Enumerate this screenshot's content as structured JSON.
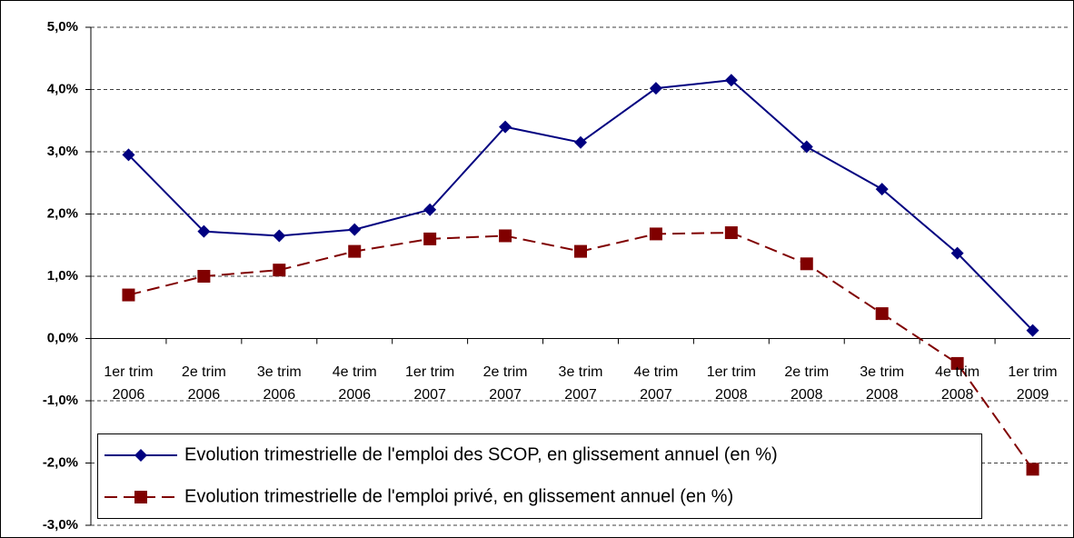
{
  "chart_data": {
    "type": "line",
    "categories": [
      "1er trim 2006",
      "2e trim 2006",
      "3e trim 2006",
      "4e trim 2006",
      "1er trim 2007",
      "2e trim 2007",
      "3e trim 2007",
      "4e trim 2007",
      "1er trim 2008",
      "2e trim 2008",
      "3e trim 2008",
      "4e trim 2008",
      "1er trim 2009"
    ],
    "series": [
      {
        "name": "Evolution trimestrielle de l'emploi des SCOP, en glissement annuel (en %)",
        "color": "#000080",
        "marker": "diamond",
        "dash": false,
        "values": [
          2.95,
          1.72,
          1.65,
          1.75,
          2.07,
          3.4,
          3.15,
          4.02,
          4.15,
          3.08,
          2.4,
          1.37,
          0.13
        ]
      },
      {
        "name": "Evolution trimestrielle de l'emploi privé, en glissement annuel (en %)",
        "color": "#800000",
        "marker": "square",
        "dash": true,
        "values": [
          0.7,
          1.0,
          1.1,
          1.4,
          1.6,
          1.65,
          1.4,
          1.68,
          1.7,
          1.2,
          0.4,
          -0.4,
          -2.1
        ]
      }
    ],
    "ylim": [
      -3,
      5
    ],
    "yticks": [
      {
        "value": -3,
        "label": "-3,0%"
      },
      {
        "value": -2,
        "label": "-2,0%"
      },
      {
        "value": -1,
        "label": "-1,0%"
      },
      {
        "value": 0,
        "label": "0,0%"
      },
      {
        "value": 1,
        "label": "1,0%"
      },
      {
        "value": 2,
        "label": "2,0%"
      },
      {
        "value": 3,
        "label": "3,0%"
      },
      {
        "value": 4,
        "label": "4,0%"
      },
      {
        "value": 5,
        "label": "5,0%"
      }
    ],
    "grid": true,
    "legend": "bottom-left"
  }
}
